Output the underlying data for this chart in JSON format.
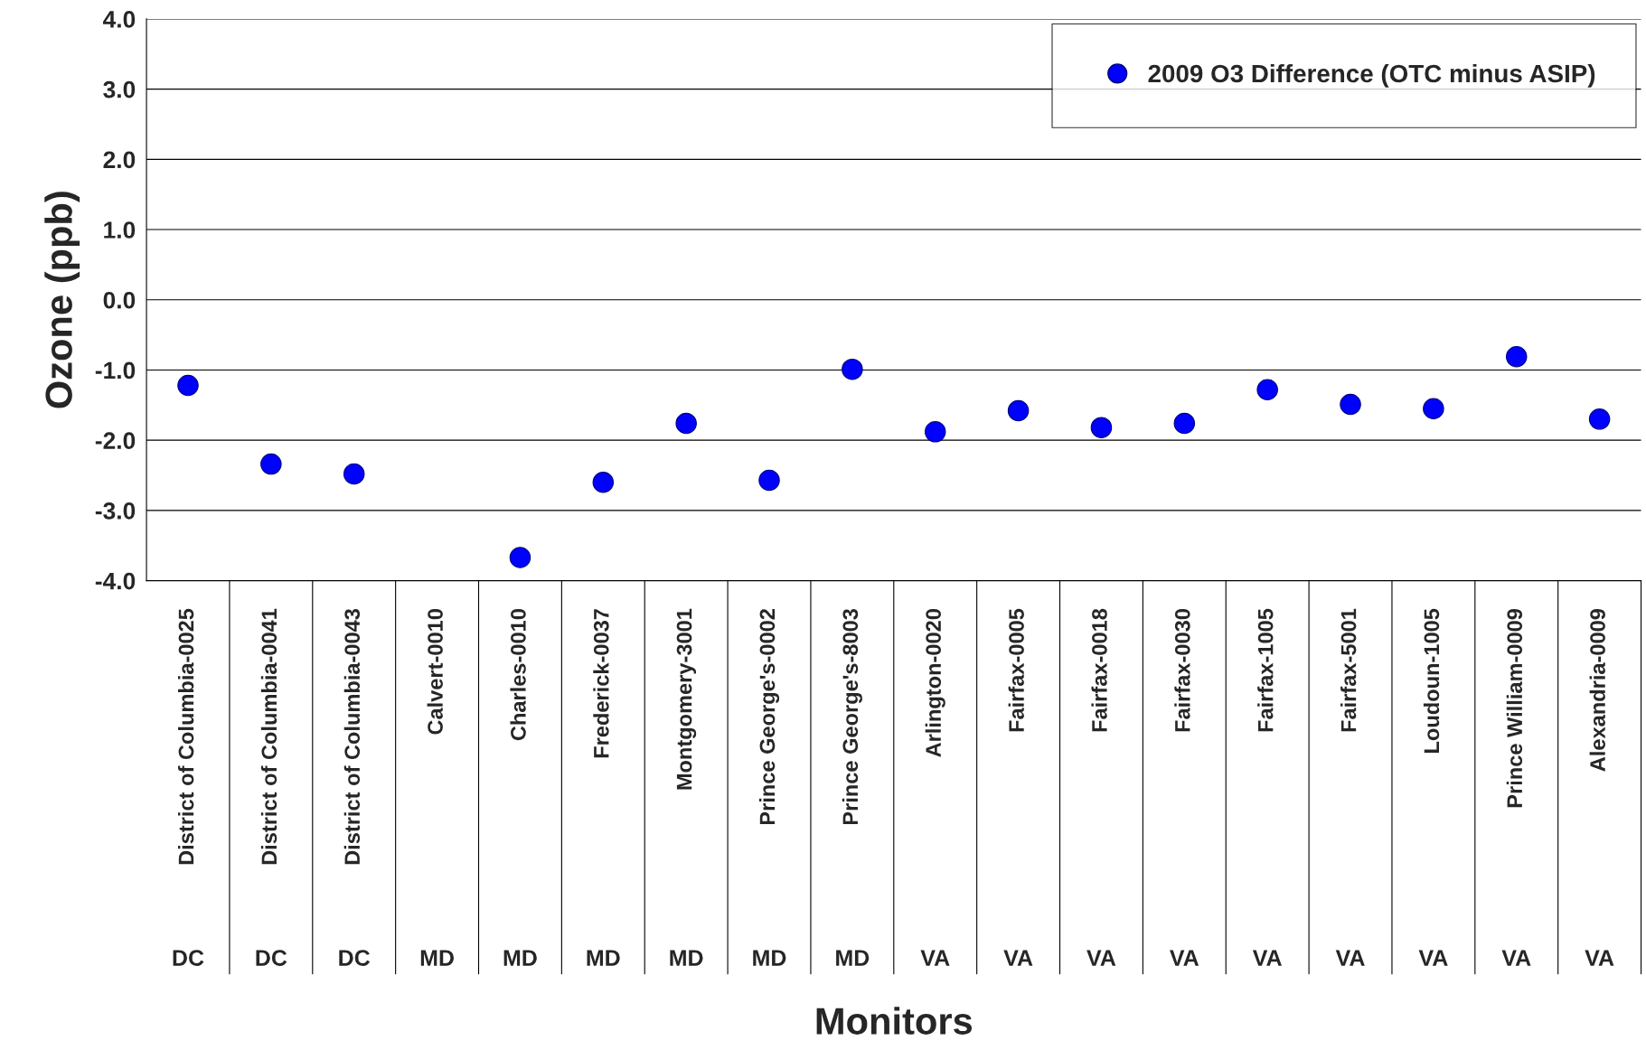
{
  "chart_data": {
    "type": "scatter",
    "xlabel": "Monitors",
    "ylabel": "Ozone (ppb)",
    "categories": [
      "District of Columbia-0025",
      "District of Columbia-0041",
      "District of Columbia-0043",
      "Calvert-0010",
      "Charles-0010",
      "Frederick-0037",
      "Montgomery-3001",
      "Prince George's-0002",
      "Prince George's-8003",
      "Arlington-0020",
      "Fairfax-0005",
      "Fairfax-0018",
      "Fairfax-0030",
      "Fairfax-1005",
      "Fairfax-5001",
      "Loudoun-1005",
      "Prince William-0009",
      "Alexandria-0009"
    ],
    "series": [
      {
        "name": "2009 O3 Difference (OTC minus ASIP)",
        "color": "#0000ff",
        "values": [
          -1.22,
          -2.34,
          -2.48,
          null,
          -3.67,
          -2.6,
          -1.76,
          -2.57,
          -0.99,
          -1.88,
          -1.58,
          -1.82,
          -1.76,
          -1.28,
          -1.49,
          -1.55,
          -0.81,
          -1.7
        ]
      }
    ],
    "annotations": [
      "DC",
      "DC",
      "DC",
      "MD",
      "MD",
      "MD",
      "MD",
      "MD",
      "MD",
      "VA",
      "VA",
      "VA",
      "VA",
      "VA",
      "VA",
      "VA",
      "VA",
      "VA"
    ],
    "ylim": [
      -4,
      4
    ],
    "yticks": [
      {
        "value": 4,
        "label": "4.0"
      },
      {
        "value": 3,
        "label": "3.0"
      },
      {
        "value": 2,
        "label": "2.0"
      },
      {
        "value": 1,
        "label": "1.0"
      },
      {
        "value": 0,
        "label": "0.0"
      },
      {
        "value": -1,
        "label": "-1.0"
      },
      {
        "value": -2,
        "label": "-2.0"
      },
      {
        "value": -3,
        "label": "-3.0"
      },
      {
        "value": -4,
        "label": "-4.0"
      }
    ],
    "grid": "y",
    "legend": "top right",
    "marker": "circle"
  }
}
